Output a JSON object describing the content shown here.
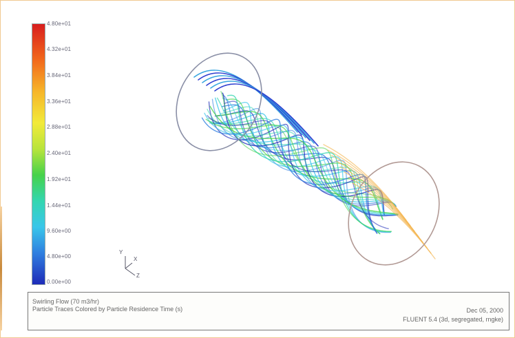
{
  "colorbar": {
    "ticks": [
      "4.80e+01",
      "4.32e+01",
      "3.84e+01",
      "3.36e+01",
      "2.88e+01",
      "2.40e+01",
      "1.92e+01",
      "1.44e+01",
      "9.60e+00",
      "4.80e+00",
      "0.00e+00"
    ],
    "colors": [
      "#d81e1e",
      "#f26a1c",
      "#f6b62a",
      "#f2ea3a",
      "#b8e43c",
      "#46d24a",
      "#33d6b0",
      "#39c6ea",
      "#2f7fe0",
      "#1e2bb8"
    ]
  },
  "axes_triad": {
    "y": "Y",
    "x": "X",
    "z": "Z"
  },
  "info": {
    "line1": "Swirling Flow (70 m3/hr)",
    "line2": "Particle Traces Colored by Particle Residence Time (s)",
    "date": "Dec 05, 2000",
    "solver": "FLUENT 5.4 (3d, segregated, rngke)"
  }
}
